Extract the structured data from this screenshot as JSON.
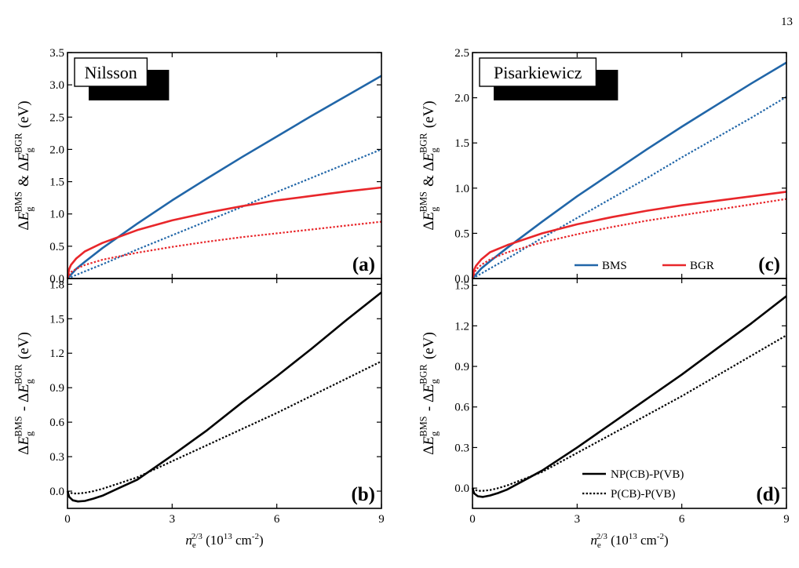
{
  "page_number": "13",
  "colors": {
    "bms": "#2166a8",
    "bgr": "#e8262a",
    "diff": "#000000"
  },
  "chart_data": [
    {
      "panel_label": "(a)",
      "type": "line",
      "model_label": "Nilsson",
      "ylabel": "ΔE_g^BMS & ΔE_g^BGR (eV)",
      "xlim": [
        0,
        9
      ],
      "ylim": [
        0,
        3.5
      ],
      "yticks": [
        "0.0",
        "0.5",
        "1.0",
        "1.5",
        "2.0",
        "2.5",
        "3.0",
        "3.5"
      ],
      "grid": false,
      "series": [
        {
          "color": "bms",
          "dash": "solid",
          "x": [
            0,
            0.25,
            0.5,
            1,
            2,
            3,
            4,
            5,
            6,
            7,
            8,
            9
          ],
          "y": [
            0,
            0.15,
            0.26,
            0.47,
            0.85,
            1.21,
            1.55,
            1.88,
            2.2,
            2.52,
            2.83,
            3.14
          ]
        },
        {
          "color": "bms",
          "dash": "dot",
          "x": [
            0,
            0.5,
            1,
            2,
            3,
            4,
            5,
            6,
            7,
            8,
            9
          ],
          "y": [
            0,
            0.11,
            0.22,
            0.45,
            0.67,
            0.89,
            1.11,
            1.34,
            1.56,
            1.78,
            2.0
          ]
        },
        {
          "color": "bgr",
          "dash": "solid",
          "x": [
            0,
            0.05,
            0.1,
            0.25,
            0.5,
            1,
            2,
            3,
            4,
            5,
            6,
            7,
            8,
            9
          ],
          "y": [
            0,
            0.15,
            0.21,
            0.31,
            0.42,
            0.55,
            0.75,
            0.9,
            1.02,
            1.12,
            1.21,
            1.28,
            1.35,
            1.41
          ]
        },
        {
          "color": "bgr",
          "dash": "dot",
          "x": [
            0,
            0.1,
            0.25,
            0.5,
            1,
            2,
            3,
            4,
            5,
            6,
            7,
            8,
            9
          ],
          "y": [
            0,
            0.1,
            0.15,
            0.21,
            0.29,
            0.4,
            0.49,
            0.57,
            0.64,
            0.7,
            0.76,
            0.82,
            0.88
          ]
        }
      ]
    },
    {
      "panel_label": "(b)",
      "type": "line",
      "xlabel": "n_e^2/3 (10^13 cm^-2)",
      "ylabel": "ΔE_g^BMS - ΔE_g^BGR (eV)",
      "xlim": [
        0,
        9
      ],
      "ylim": [
        -0.15,
        1.85
      ],
      "xticks": [
        "0",
        "3",
        "6",
        "9"
      ],
      "yticks": [
        "0.0",
        "0.3",
        "0.6",
        "0.9",
        "1.2",
        "1.5",
        "1.8"
      ],
      "grid": false,
      "series": [
        {
          "color": "diff",
          "dash": "solid",
          "x": [
            0,
            0.05,
            0.15,
            0.3,
            0.5,
            0.75,
            1,
            1.5,
            2,
            3,
            4,
            5,
            6,
            7,
            8,
            9
          ],
          "y": [
            0,
            -0.05,
            -0.08,
            -0.09,
            -0.085,
            -0.065,
            -0.04,
            0.03,
            0.1,
            0.31,
            0.53,
            0.77,
            1.0,
            1.24,
            1.49,
            1.73
          ]
        },
        {
          "color": "diff",
          "dash": "dot",
          "x": [
            0,
            0.05,
            0.15,
            0.3,
            0.5,
            0.75,
            1,
            1.5,
            2,
            3,
            4,
            5,
            6,
            7,
            8,
            9
          ],
          "y": [
            0,
            -0.01,
            -0.02,
            -0.02,
            -0.015,
            0,
            0.02,
            0.07,
            0.12,
            0.26,
            0.4,
            0.54,
            0.68,
            0.83,
            0.98,
            1.13
          ]
        }
      ]
    },
    {
      "panel_label": "(c)",
      "type": "line",
      "model_label": "Pisarkiewicz",
      "ylabel": "ΔE_g^BMS & ΔE_g^BGR (eV)",
      "xlim": [
        0,
        9
      ],
      "ylim": [
        0,
        2.5
      ],
      "yticks": [
        "0.0",
        "0.5",
        "1.0",
        "1.5",
        "2.0",
        "2.5"
      ],
      "grid": false,
      "legend": [
        {
          "label": "BMS",
          "color": "bms"
        },
        {
          "label": "BGR",
          "color": "bgr"
        }
      ],
      "series": [
        {
          "color": "bms",
          "dash": "solid",
          "x": [
            0,
            0.25,
            0.5,
            1,
            2,
            3,
            4,
            5,
            6,
            7,
            8,
            9
          ],
          "y": [
            0,
            0.11,
            0.19,
            0.34,
            0.63,
            0.91,
            1.17,
            1.43,
            1.68,
            1.92,
            2.16,
            2.39
          ]
        },
        {
          "color": "bms",
          "dash": "dot",
          "x": [
            0,
            0.5,
            1,
            2,
            3,
            4,
            5,
            6,
            7,
            8,
            9
          ],
          "y": [
            0,
            0.11,
            0.22,
            0.45,
            0.67,
            0.89,
            1.11,
            1.34,
            1.56,
            1.78,
            2.01
          ]
        },
        {
          "color": "bgr",
          "dash": "solid",
          "x": [
            0,
            0.05,
            0.1,
            0.25,
            0.5,
            1,
            2,
            3,
            4,
            5,
            6,
            7,
            8,
            9
          ],
          "y": [
            0,
            0.1,
            0.14,
            0.21,
            0.29,
            0.37,
            0.5,
            0.6,
            0.68,
            0.75,
            0.81,
            0.86,
            0.91,
            0.96
          ]
        },
        {
          "color": "bgr",
          "dash": "dot",
          "x": [
            0,
            0.1,
            0.25,
            0.5,
            1,
            2,
            3,
            4,
            5,
            6,
            7,
            8,
            9
          ],
          "y": [
            0,
            0.1,
            0.15,
            0.21,
            0.29,
            0.4,
            0.49,
            0.57,
            0.64,
            0.7,
            0.76,
            0.82,
            0.88
          ]
        }
      ]
    },
    {
      "panel_label": "(d)",
      "type": "line",
      "xlabel": "n_e^2/3 (10^13 cm^-2)",
      "ylabel": "ΔE_g^BMS - ΔE_g^BGR (eV)",
      "xlim": [
        0,
        9
      ],
      "ylim": [
        -0.15,
        1.55
      ],
      "xticks": [
        "0",
        "3",
        "6",
        "9"
      ],
      "yticks": [
        "0.0",
        "0.3",
        "0.6",
        "0.9",
        "1.2",
        "1.5"
      ],
      "grid": false,
      "legend": [
        {
          "label": "NP(CB)-P(VB)",
          "dash": "solid"
        },
        {
          "label": "P(CB)-P(VB)",
          "dash": "dot"
        }
      ],
      "series": [
        {
          "color": "diff",
          "dash": "solid",
          "x": [
            0,
            0.05,
            0.15,
            0.3,
            0.5,
            0.75,
            1,
            1.5,
            2,
            3,
            4,
            5,
            6,
            7,
            8,
            9
          ],
          "y": [
            0,
            -0.04,
            -0.06,
            -0.065,
            -0.055,
            -0.035,
            -0.01,
            0.06,
            0.13,
            0.3,
            0.48,
            0.66,
            0.84,
            1.03,
            1.22,
            1.42
          ]
        },
        {
          "color": "diff",
          "dash": "dot",
          "x": [
            0,
            0.05,
            0.15,
            0.3,
            0.5,
            0.75,
            1,
            1.5,
            2,
            3,
            4,
            5,
            6,
            7,
            8,
            9
          ],
          "y": [
            0,
            -0.01,
            -0.02,
            -0.02,
            -0.015,
            0,
            0.02,
            0.07,
            0.12,
            0.26,
            0.4,
            0.54,
            0.68,
            0.83,
            0.98,
            1.13
          ]
        }
      ]
    }
  ]
}
